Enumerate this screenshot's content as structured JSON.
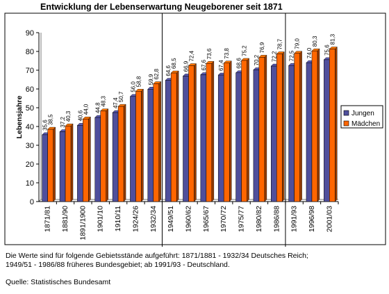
{
  "title": "Entwicklung der Lebenserwartung Neugeborener seit 1871",
  "notes": {
    "line1": "Die Werte sind für folgende Gebietsstände aufgeführt: 1871/1881 - 1932/34 Deutsches Reich;",
    "line2": "1949/51 - 1986/88 früheres Bundesgebiet; ab 1991/93 - Deutschland.",
    "source": "Quelle: Statistisches Bundesamt"
  },
  "colors": {
    "jungen": "#4F4F9C",
    "maedchen": "#FF6600",
    "background": "#FFFFFF"
  },
  "chart_data": {
    "type": "bar",
    "title": "Entwicklung der Lebenserwartung Neugeborener seit 1871",
    "xlabel": "",
    "ylabel": "Lebensjahre",
    "ylim": [
      0,
      90
    ],
    "yticks": [
      0,
      10,
      20,
      30,
      40,
      50,
      60,
      70,
      80,
      90
    ],
    "grid": false,
    "legend_position": "right",
    "categories": [
      "1871/81",
      "1881/90",
      "1891/1900",
      "1901/10",
      "1910/11",
      "1924/26",
      "1932/34",
      "1949/51",
      "1960/62",
      "1965/67",
      "1970/72",
      "1975/77",
      "1980/82",
      "1986/88",
      "1991/93",
      "1996/98",
      "2001/03"
    ],
    "series": [
      {
        "name": "Jungen",
        "values": [
          35.6,
          37.2,
          40.6,
          44.8,
          47.4,
          56.0,
          59.9,
          64.6,
          66.9,
          67.6,
          67.4,
          68.6,
          70.2,
          72.2,
          72.5,
          74.0,
          75.6
        ],
        "labels": [
          "35,6",
          "37,2",
          "40,6",
          "44,8",
          "47,4",
          "56,0",
          "59,9",
          "64,6",
          "66,9",
          "67,6",
          "67,4",
          "68,6",
          "70,2",
          "72,2",
          "72,5",
          "74,0",
          "75,6"
        ]
      },
      {
        "name": "Mädchen",
        "values": [
          38.5,
          40.3,
          44.0,
          48.3,
          50.7,
          58.8,
          62.8,
          68.5,
          72.4,
          73.6,
          73.8,
          75.2,
          76.9,
          78.7,
          79.0,
          80.3,
          81.3
        ],
        "labels": [
          "38,5",
          "40,3",
          "44,0",
          "48,3",
          "50,7",
          "58,8",
          "62,8",
          "68,5",
          "72,4",
          "73,6",
          "73,8",
          "75,2",
          "76,9",
          "78,7",
          "79,0",
          "80,3",
          "81,3"
        ]
      }
    ],
    "separators_after": [
      "1932/34",
      "1986/88"
    ]
  }
}
